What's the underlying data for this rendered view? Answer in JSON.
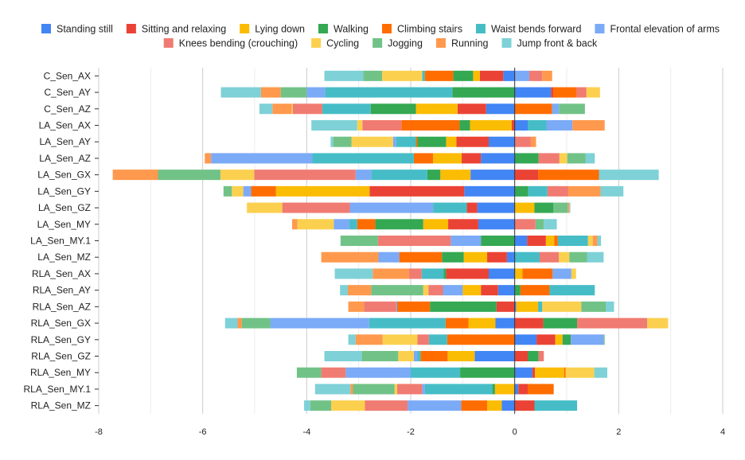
{
  "chart_data": {
    "type": "bar",
    "orientation": "horizontal",
    "stacked": "diverging",
    "title": "",
    "xlabel": "",
    "ylabel": "",
    "xlim": [
      -8,
      4
    ],
    "xticks": [
      -8,
      -6,
      -4,
      -2,
      0,
      2,
      4
    ],
    "grid": true,
    "legend_position": "top",
    "colors": [
      "#4285F4",
      "#EA4335",
      "#FBBC04",
      "#34A853",
      "#FF6D01",
      "#46BDC6",
      "#7BAAF7",
      "#F07B72",
      "#FCD04F",
      "#71C287",
      "#FF994D",
      "#7ED1D7"
    ],
    "categories": [
      "C_Sen_AX",
      "C_Sen_AY",
      "C_Sen_AZ",
      "LA_Sen_AX",
      "LA_Sen_AY",
      "LA_Sen_AZ",
      "LA_Sen_GX",
      "LA_Sen_GY",
      "LA_Sen_GZ",
      "LA_Sen_MY",
      "LA_Sen_MY.1",
      "LA_Sen_MZ",
      "RLA_Sen_AX",
      "RLA_Sen_AY",
      "RLA_Sen_AZ",
      "RLA_Sen_GX",
      "RLA_Sen_GY",
      "RLA_Sen_GZ",
      "RLA_Sen_MY",
      "RLA_Sen_MY.1",
      "RLA_Sen_MZ"
    ],
    "series": [
      {
        "name": "Standing still",
        "values": [
          -0.22,
          0.7,
          -0.55,
          0.25,
          -0.5,
          -0.65,
          -0.85,
          -0.97,
          -0.72,
          -0.7,
          0.24,
          -0.15,
          -0.5,
          -0.32,
          0.03,
          -0.37,
          0.42,
          -0.77,
          0.34,
          0.07,
          -0.25
        ]
      },
      {
        "name": "Sitting and relaxing",
        "values": [
          -0.45,
          0.04,
          -0.55,
          -0.06,
          -0.62,
          -0.37,
          0.45,
          -1.82,
          -0.2,
          -0.58,
          0.36,
          -0.38,
          -0.82,
          -0.33,
          -0.35,
          0.55,
          0.36,
          0.25,
          0.05,
          0.18,
          0.38
        ]
      },
      {
        "name": "Lying down",
        "values": [
          -0.13,
          0.0,
          -0.8,
          -0.8,
          -0.2,
          -0.55,
          -0.58,
          -1.8,
          0.38,
          -0.48,
          0.16,
          -0.45,
          0.15,
          -0.35,
          0.42,
          -0.52,
          0.14,
          -0.52,
          0.56,
          -0.38,
          -0.28
        ]
      },
      {
        "name": "Walking",
        "values": [
          -0.38,
          -1.2,
          -0.87,
          -0.2,
          -0.55,
          0.46,
          -0.25,
          0.26,
          0.36,
          -0.92,
          -0.65,
          -0.42,
          -0.05,
          0.11,
          -1.28,
          0.65,
          0.16,
          0.21,
          -1.05,
          -0.05,
          0.0
        ]
      },
      {
        "name": "Climbing stairs",
        "values": [
          -0.55,
          0.45,
          0.72,
          -1.12,
          -0.03,
          -0.37,
          1.17,
          -0.48,
          0.0,
          -0.35,
          0.07,
          -0.82,
          0.58,
          0.56,
          -0.63,
          -0.44,
          -1.3,
          -0.52,
          0.03,
          0.5,
          -0.5
        ]
      },
      {
        "name": "Waist bends forward",
        "values": [
          -0.05,
          -2.45,
          -0.93,
          0.36,
          -0.38,
          -1.95,
          -1.08,
          0.37,
          -0.65,
          -0.15,
          0.58,
          0.48,
          -0.42,
          0.87,
          0.08,
          -1.47,
          -0.35,
          -0.06,
          -0.95,
          -1.3,
          0.82
        ]
      },
      {
        "name": "Frontal elevation of arms",
        "values": [
          0.28,
          -0.35,
          0.13,
          0.5,
          -0.06,
          -1.95,
          -0.3,
          -0.15,
          -1.6,
          -0.3,
          -0.58,
          -0.4,
          0.36,
          -0.38,
          -0.02,
          -1.9,
          0.63,
          -0.07,
          -1.25,
          -0.05,
          -1.03
        ]
      },
      {
        "name": "Knees bending (crouching)",
        "values": [
          0.25,
          0.19,
          -0.57,
          -0.75,
          0.31,
          0.4,
          -1.95,
          0.4,
          -1.3,
          0.4,
          -1.4,
          0.37,
          -0.24,
          -0.28,
          -0.62,
          1.35,
          -0.22,
          0.1,
          -0.47,
          -0.48,
          -0.82
        ]
      },
      {
        "name": "Cycling",
        "values": [
          -0.77,
          0.26,
          -0.02,
          -0.1,
          -0.8,
          0.15,
          -0.65,
          -0.22,
          -0.68,
          -0.7,
          0.09,
          0.2,
          0.09,
          -0.1,
          0.75,
          0.4,
          -0.67,
          -0.3,
          0.55,
          -0.05,
          -0.65
        ]
      },
      {
        "name": "Jogging",
        "values": [
          -0.36,
          -0.5,
          0.5,
          0.0,
          -0.35,
          0.35,
          -1.2,
          -0.16,
          0.28,
          0.16,
          -0.72,
          0.34,
          0.0,
          -1.0,
          0.47,
          -0.55,
          0.02,
          -0.7,
          -0.47,
          -0.8,
          -0.4
        ]
      },
      {
        "name": "Running",
        "values": [
          0.19,
          -0.38,
          -0.37,
          0.62,
          0.1,
          -0.12,
          -0.87,
          0.62,
          0.03,
          -0.1,
          0.09,
          -1.1,
          -0.7,
          -0.45,
          -0.3,
          -0.08,
          -0.52,
          0.0,
          0.0,
          -0.05,
          0.0
        ]
      },
      {
        "name": "Jump front & back",
        "values": [
          -0.75,
          -0.77,
          -0.25,
          -0.88,
          -0.05,
          0.18,
          1.15,
          0.44,
          0.02,
          0.25,
          0.07,
          0.32,
          -0.73,
          -0.15,
          0.16,
          -0.24,
          -0.14,
          -0.72,
          0.25,
          -0.68,
          -0.12
        ]
      }
    ]
  }
}
